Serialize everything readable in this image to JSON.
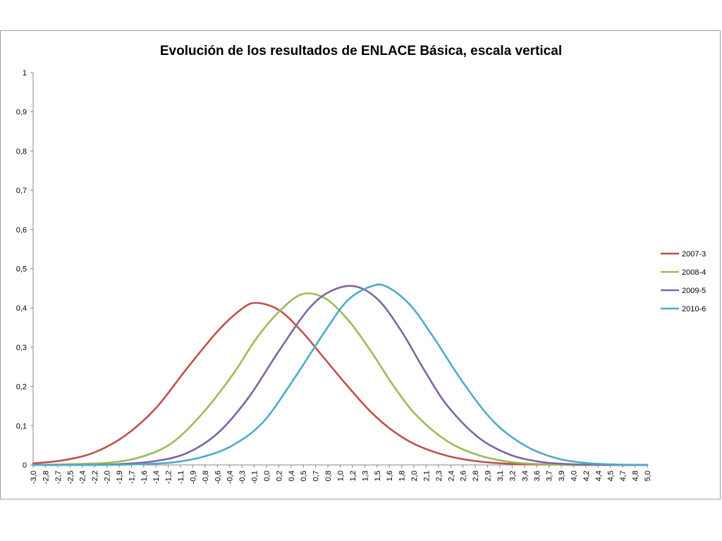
{
  "chart_data": {
    "type": "line",
    "title": "Evolución de los resultados de ENLACE Básica, escala vertical",
    "xlabel": "",
    "ylabel": "",
    "x_range": [
      -3.0,
      5.0
    ],
    "ylim": [
      0,
      1
    ],
    "y_ticks": [
      "0",
      "0,1",
      "0,2",
      "0,3",
      "0,4",
      "0,5",
      "0,6",
      "0,7",
      "0,8",
      "0,9",
      "1"
    ],
    "x_tick_labels": [
      "-3,0",
      "-2,8",
      "-2,7",
      "-2,5",
      "-2,4",
      "-2,2",
      "-2,0",
      "-1,9",
      "-1,7",
      "-1,6",
      "-1,4",
      "-1,2",
      "-1,1",
      "-0,9",
      "-0,8",
      "-0,6",
      "-0,4",
      "-0,3",
      "-0,1",
      "0,0",
      "0,2",
      "0,4",
      "0,5",
      "0,7",
      "0,8",
      "1,0",
      "1,2",
      "1,3",
      "1,5",
      "1,6",
      "1,8",
      "2,0",
      "2,1",
      "2,3",
      "2,4",
      "2,6",
      "2,8",
      "2,9",
      "3,1",
      "3,2",
      "3,4",
      "3,6",
      "3,7",
      "3,9",
      "4,0",
      "4,2",
      "4,4",
      "4,5",
      "4,7",
      "4,8",
      "5,0"
    ],
    "grid": false,
    "legend_position": "right",
    "series": [
      {
        "name": "2007-3",
        "color": "#c0504d",
        "x": [
          -3.0,
          -2.6,
          -2.2,
          -1.8,
          -1.4,
          -1.0,
          -0.6,
          -0.3,
          -0.1,
          0.2,
          0.5,
          0.8,
          1.1,
          1.4,
          1.7,
          2.0,
          2.4,
          2.8,
          3.2,
          3.6,
          4.0,
          4.4,
          5.0
        ],
        "y": [
          0.004,
          0.012,
          0.032,
          0.075,
          0.145,
          0.245,
          0.34,
          0.395,
          0.413,
          0.395,
          0.34,
          0.27,
          0.2,
          0.135,
          0.085,
          0.05,
          0.023,
          0.009,
          0.003,
          0.001,
          0.0,
          0.0,
          0.0
        ]
      },
      {
        "name": "2008-4",
        "color": "#9bbb59",
        "x": [
          -3.0,
          -2.5,
          -2.0,
          -1.6,
          -1.2,
          -0.8,
          -0.4,
          -0.1,
          0.2,
          0.5,
          0.8,
          1.1,
          1.4,
          1.7,
          2.0,
          2.4,
          2.8,
          3.2,
          3.6,
          4.0,
          4.5,
          5.0
        ],
        "y": [
          0.0,
          0.002,
          0.006,
          0.02,
          0.055,
          0.13,
          0.23,
          0.32,
          0.39,
          0.435,
          0.425,
          0.37,
          0.29,
          0.2,
          0.125,
          0.06,
          0.025,
          0.008,
          0.002,
          0.0,
          0.0,
          0.0
        ]
      },
      {
        "name": "2009-5",
        "color": "#8064a2",
        "x": [
          -3.0,
          -2.2,
          -1.8,
          -1.4,
          -1.0,
          -0.6,
          -0.2,
          0.2,
          0.6,
          0.9,
          1.2,
          1.5,
          1.8,
          2.1,
          2.4,
          2.8,
          3.2,
          3.6,
          4.0,
          4.5,
          5.0
        ],
        "y": [
          0.0,
          0.0,
          0.003,
          0.01,
          0.03,
          0.08,
          0.17,
          0.29,
          0.4,
          0.445,
          0.455,
          0.42,
          0.34,
          0.24,
          0.15,
          0.07,
          0.027,
          0.008,
          0.002,
          0.0,
          0.0
        ]
      },
      {
        "name": "2010-6",
        "color": "#4bacc6",
        "x": [
          -3.0,
          -2.0,
          -1.6,
          -1.2,
          -0.8,
          -0.4,
          0.0,
          0.4,
          0.8,
          1.1,
          1.4,
          1.6,
          1.9,
          2.2,
          2.6,
          3.0,
          3.4,
          3.8,
          4.2,
          4.6,
          5.0
        ],
        "y": [
          0.0,
          0.0,
          0.002,
          0.006,
          0.02,
          0.05,
          0.11,
          0.22,
          0.34,
          0.42,
          0.455,
          0.455,
          0.41,
          0.33,
          0.21,
          0.11,
          0.05,
          0.018,
          0.005,
          0.001,
          0.0
        ]
      }
    ]
  }
}
